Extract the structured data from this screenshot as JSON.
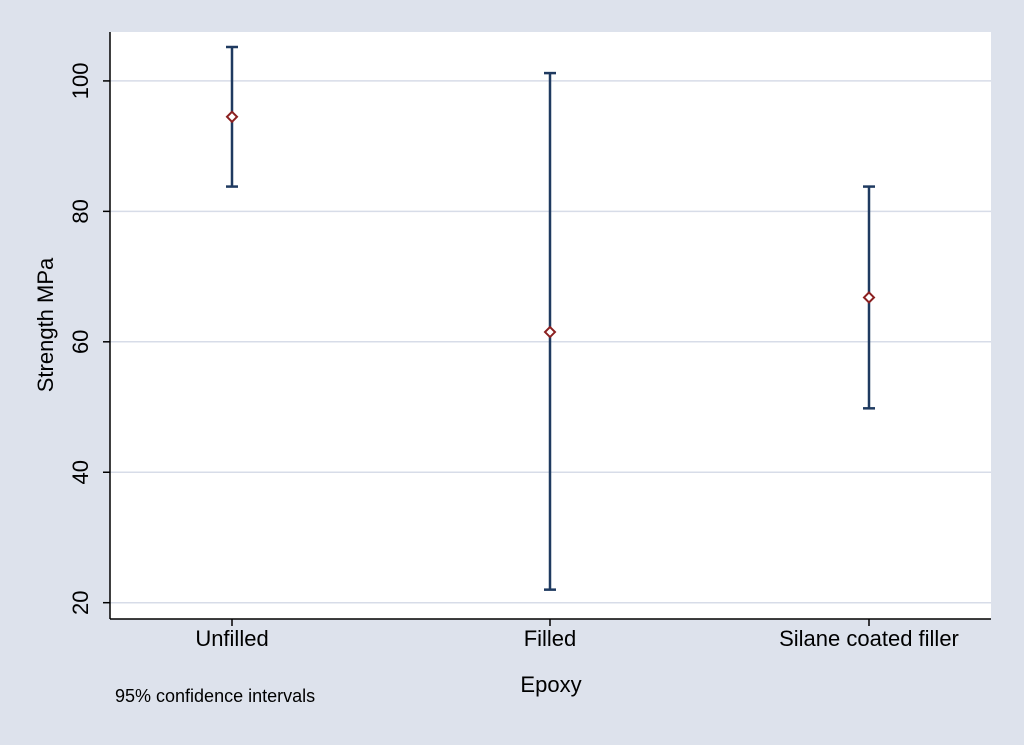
{
  "chart_data": {
    "type": "scatter",
    "title": "",
    "xlabel": "Epoxy",
    "ylabel": "Strength MPa",
    "note": "95% confidence intervals",
    "ylim": [
      17.5,
      107.5
    ],
    "yticks": [
      20,
      40,
      60,
      80,
      100
    ],
    "grid": true,
    "categories": [
      "Unfilled",
      "Filled",
      "Silane coated filler"
    ],
    "series": [
      {
        "mean": [
          94.5,
          61.5,
          66.8
        ],
        "lower": [
          83.8,
          22.0,
          49.8
        ],
        "upper": [
          105.2,
          101.2,
          83.8
        ]
      }
    ],
    "colors": {
      "outer_background": "#dde2ec",
      "plot_background": "#ffffff",
      "gridline": "#d7dce8",
      "error_bar": "#1f3a60",
      "marker": "#8b2020",
      "axis": "#000000"
    }
  }
}
